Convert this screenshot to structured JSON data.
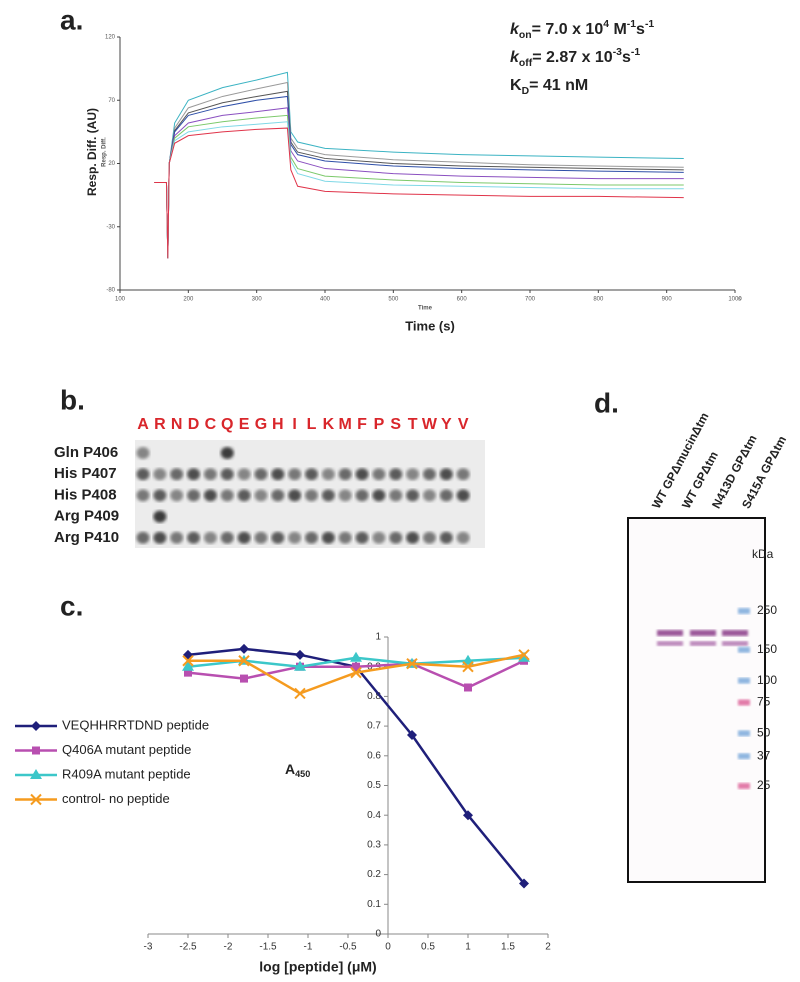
{
  "chart_data": [
    {
      "type": "line",
      "panel_label": "a.",
      "x_label": "Time (s)",
      "x_sublabel": "Time",
      "x_unit": "s",
      "y_label": "Resp. Diff. (AU)",
      "y_sublabel": "Resp. Diff.",
      "annotations": [
        [
          {
            "text": "k",
            "style": "italic"
          },
          {
            "text": "on",
            "style": "sub"
          },
          {
            "text": "= 7.0 x 10"
          },
          {
            "text": "4",
            "style": "sup"
          },
          {
            "text": " M"
          },
          {
            "text": "-1",
            "style": "sup"
          },
          {
            "text": "s"
          },
          {
            "text": "-1",
            "style": "sup"
          }
        ],
        [
          {
            "text": "k",
            "style": "italic"
          },
          {
            "text": "off",
            "style": "sub"
          },
          {
            "text": "= 2.87 x 10"
          },
          {
            "text": "-3",
            "style": "sup"
          },
          {
            "text": "s"
          },
          {
            "text": "-1",
            "style": "sup"
          }
        ],
        [
          {
            "text": "K"
          },
          {
            "text": "D",
            "style": "sub"
          },
          {
            "text": "= 41 nM"
          }
        ]
      ],
      "xlim": [
        100,
        1000
      ],
      "xticks": [
        100,
        200,
        300,
        400,
        500,
        600,
        700,
        800,
        900,
        1000
      ],
      "ylim": [
        -80,
        120
      ],
      "yticks": [
        -80,
        -30,
        20,
        70,
        120
      ],
      "x": [
        150,
        168,
        170,
        172,
        180,
        200,
        250,
        300,
        345,
        350,
        360,
        400,
        500,
        600,
        700,
        800,
        925
      ],
      "series": [
        {
          "color": "#3bb3c3",
          "values": [
            5,
            5,
            -55,
            20,
            52,
            70,
            80,
            86,
            92,
            45,
            37,
            32,
            29,
            27,
            26,
            25,
            24
          ]
        },
        {
          "color": "#9a9a9a",
          "values": [
            5,
            5,
            -55,
            20,
            48,
            64,
            73,
            79,
            84,
            40,
            32,
            27,
            23,
            21,
            19,
            18,
            17
          ]
        },
        {
          "color": "#555555",
          "values": [
            5,
            5,
            -55,
            20,
            46,
            60,
            68,
            73,
            77,
            37,
            29,
            24,
            20,
            18,
            17,
            16,
            15
          ]
        },
        {
          "color": "#2e4fa8",
          "values": [
            5,
            5,
            -55,
            20,
            45,
            58,
            65,
            70,
            73,
            35,
            27,
            22,
            18,
            16,
            15,
            14,
            13
          ]
        },
        {
          "color": "#8a4fc0",
          "values": [
            5,
            5,
            -55,
            20,
            42,
            52,
            58,
            61,
            64,
            30,
            22,
            16,
            12,
            10,
            9,
            8,
            8
          ]
        },
        {
          "color": "#7cc96b",
          "values": [
            5,
            5,
            -55,
            20,
            40,
            49,
            53,
            56,
            58,
            25,
            16,
            10,
            7,
            5,
            4,
            3,
            3
          ]
        },
        {
          "color": "#7fd8e6",
          "values": [
            5,
            5,
            -55,
            20,
            38,
            45,
            49,
            51,
            53,
            22,
            12,
            6,
            3,
            2,
            1,
            0,
            0
          ]
        },
        {
          "color": "#e0344a",
          "values": [
            5,
            5,
            -55,
            20,
            36,
            42,
            45,
            47,
            48,
            15,
            2,
            -2,
            -4,
            -5,
            -6,
            -6,
            -7
          ]
        }
      ]
    },
    {
      "type": "line",
      "panel_label": "c.",
      "x_label": "log [peptide]  (μM)",
      "y_label": [
        {
          "text": "A"
        },
        {
          "text": "450",
          "style": "sub"
        }
      ],
      "xlim": [
        -3,
        2
      ],
      "xticks": [
        -3,
        -2.5,
        -2,
        -1.5,
        -1,
        -0.5,
        0,
        0.5,
        1,
        1.5,
        2
      ],
      "ylim": [
        0,
        1
      ],
      "yticks": [
        0,
        0.1,
        0.2,
        0.3,
        0.4,
        0.5,
        0.6,
        0.7,
        0.8,
        0.9,
        1
      ],
      "x": [
        -2.5,
        -1.8,
        -1.1,
        -0.4,
        0.3,
        1,
        1.7
      ],
      "series": [
        {
          "name": "VEQHHRRTDND peptide",
          "color": "#1f1f7a",
          "marker": "diamond",
          "values": [
            0.94,
            0.96,
            0.94,
            0.9,
            0.67,
            0.4,
            0.17
          ]
        },
        {
          "name": "Q406A mutant peptide",
          "color": "#b84fb0",
          "marker": "square",
          "values": [
            0.88,
            0.86,
            0.9,
            0.9,
            0.91,
            0.83,
            0.92
          ]
        },
        {
          "name": "R409A mutant peptide",
          "color": "#3cc7c9",
          "marker": "triangle",
          "values": [
            0.9,
            0.92,
            0.9,
            0.93,
            0.91,
            0.92,
            0.93
          ]
        },
        {
          "name": "control- no peptide",
          "color": "#f59b1f",
          "marker": "x",
          "values": [
            0.92,
            0.92,
            0.81,
            0.88,
            0.91,
            0.9,
            0.94
          ]
        }
      ]
    }
  ],
  "blot": {
    "panel_label": "b.",
    "columns": [
      "A",
      "R",
      "N",
      "D",
      "C",
      "Q",
      "E",
      "G",
      "H",
      "I",
      "L",
      "K",
      "M",
      "F",
      "P",
      "S",
      "T",
      "W",
      "Y",
      "V"
    ],
    "rows": [
      "Gln P406",
      "His P407",
      "His P408",
      "Arg P409",
      "Arg P410"
    ]
  },
  "gel": {
    "panel_label": "d.",
    "lanes": [
      "WT GPΔmucinΔtm",
      "WT GPΔtm",
      "N413D GPΔtm",
      "S415A GPΔtm"
    ],
    "unit": "kDa",
    "markers": [
      250,
      150,
      100,
      75,
      50,
      37,
      25
    ]
  }
}
